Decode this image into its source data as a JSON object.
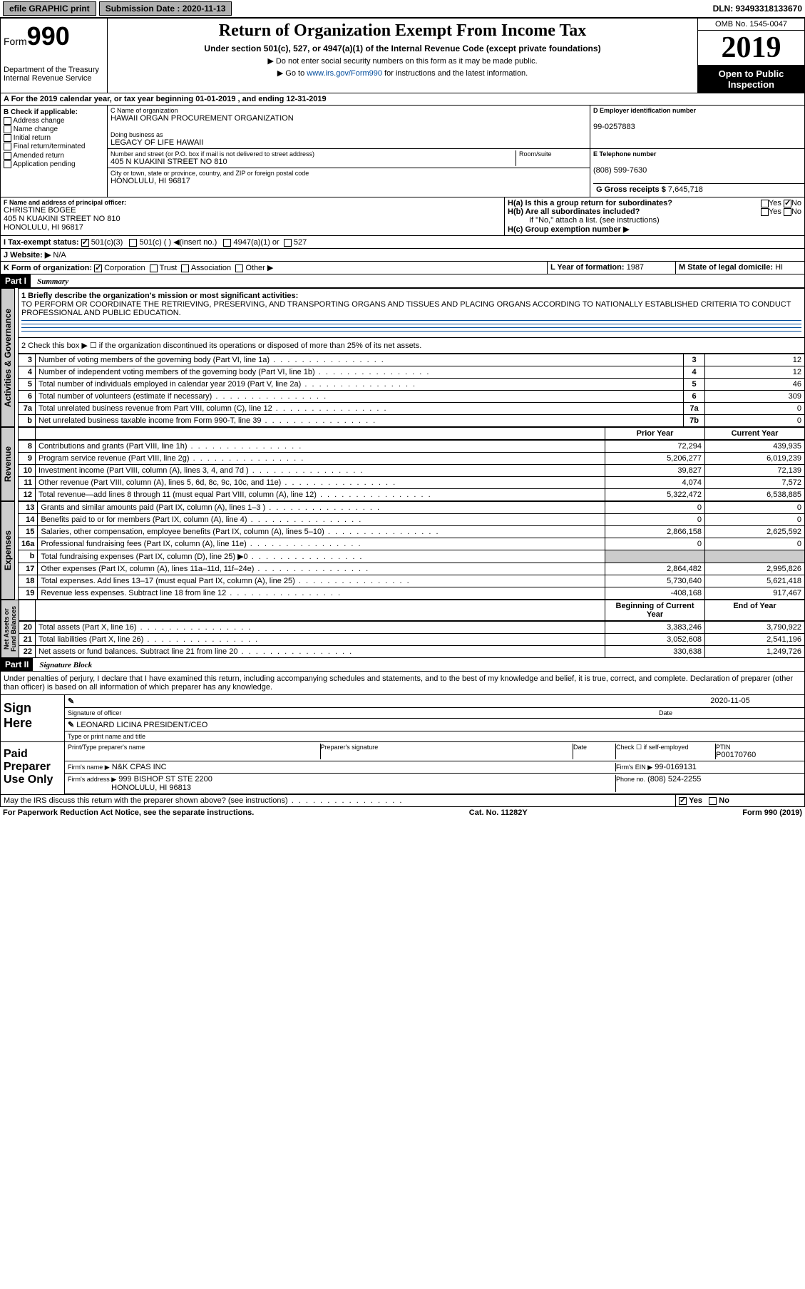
{
  "topbar": {
    "efile": "efile GRAPHIC print",
    "submission_label": "Submission Date : 2020-11-13",
    "dln": "DLN: 93493318133670"
  },
  "header": {
    "form_prefix": "Form",
    "form_number": "990",
    "dept": "Department of the Treasury Internal Revenue Service",
    "title": "Return of Organization Exempt From Income Tax",
    "subtitle": "Under section 501(c), 527, or 4947(a)(1) of the Internal Revenue Code (except private foundations)",
    "note1": "▶ Do not enter social security numbers on this form as it may be made public.",
    "note2_pre": "▶ Go to ",
    "note2_link": "www.irs.gov/Form990",
    "note2_post": " for instructions and the latest information.",
    "omb": "OMB No. 1545-0047",
    "year": "2019",
    "inspect": "Open to Public Inspection"
  },
  "row_a": "A For the 2019 calendar year, or tax year beginning 01-01-2019    , and ending 12-31-2019",
  "box_b": {
    "label": "B Check if applicable:",
    "opts": [
      "Address change",
      "Name change",
      "Initial return",
      "Final return/terminated",
      "Amended return",
      "Application pending"
    ]
  },
  "box_c": {
    "name_label": "C Name of organization",
    "name": "HAWAII ORGAN PROCUREMENT ORGANIZATION",
    "dba_label": "Doing business as",
    "dba": "LEGACY OF LIFE HAWAII",
    "street_label": "Number and street (or P.O. box if mail is not delivered to street address)",
    "street": "405 N KUAKINI STREET NO 810",
    "room_label": "Room/suite",
    "city_label": "City or town, state or province, country, and ZIP or foreign postal code",
    "city": "HONOLULU, HI  96817"
  },
  "box_d": {
    "label": "D Employer identification number",
    "ein": "99-0257883"
  },
  "box_e": {
    "label": "E Telephone number",
    "phone": "(808) 599-7630"
  },
  "box_g": {
    "label": "G Gross receipts $",
    "amount": "7,645,718"
  },
  "box_f": {
    "label": "F  Name and address of principal officer:",
    "name": "CHRISTINE BOGEE",
    "addr1": "405 N KUAKINI STREET NO 810",
    "addr2": "HONOLULU, HI  96817"
  },
  "box_h": {
    "a": "H(a)  Is this a group return for subordinates?",
    "b": "H(b)  Are all subordinates included?",
    "b_note": "If \"No,\" attach a list. (see instructions)",
    "c": "H(c)  Group exemption number ▶",
    "yes": "Yes",
    "no": "No"
  },
  "tax_status": {
    "label": "I  Tax-exempt status:",
    "opt1": "501(c)(3)",
    "opt2": "501(c) (  ) ◀(insert no.)",
    "opt3": "4947(a)(1) or",
    "opt4": "527"
  },
  "website": {
    "label": "J  Website: ▶",
    "val": "N/A"
  },
  "form_org": {
    "label": "K Form of organization:",
    "opts": [
      "Corporation",
      "Trust",
      "Association",
      "Other ▶"
    ]
  },
  "box_l": {
    "label": "L Year of formation:",
    "val": "1987"
  },
  "box_m": {
    "label": "M State of legal domicile:",
    "val": "HI"
  },
  "part1": {
    "hdr": "Part I",
    "title": "Summary"
  },
  "summary": {
    "q1_label": "1  Briefly describe the organization's mission or most significant activities:",
    "q1_text": "TO PERFORM OR COORDINATE THE RETRIEVING, PRESERVING, AND TRANSPORTING ORGANS AND TISSUES AND PLACING ORGANS ACCORDING TO NATIONALLY ESTABLISHED CRITERIA TO CONDUCT PROFESSIONAL AND PUBLIC EDUCATION.",
    "q2": "2   Check this box ▶ ☐  if the organization discontinued its operations or disposed of more than 25% of its net assets.",
    "lines_ag": [
      {
        "n": "3",
        "d": "Number of voting members of the governing body (Part VI, line 1a)",
        "b": "3",
        "v": "12"
      },
      {
        "n": "4",
        "d": "Number of independent voting members of the governing body (Part VI, line 1b)",
        "b": "4",
        "v": "12"
      },
      {
        "n": "5",
        "d": "Total number of individuals employed in calendar year 2019 (Part V, line 2a)",
        "b": "5",
        "v": "46"
      },
      {
        "n": "6",
        "d": "Total number of volunteers (estimate if necessary)",
        "b": "6",
        "v": "309"
      },
      {
        "n": "7a",
        "d": "Total unrelated business revenue from Part VIII, column (C), line 12",
        "b": "7a",
        "v": "0"
      },
      {
        "n": "b",
        "d": "Net unrelated business taxable income from Form 990-T, line 39",
        "b": "7b",
        "v": "0"
      }
    ],
    "col_hdrs": {
      "prior": "Prior Year",
      "current": "Current Year"
    },
    "revenue": [
      {
        "n": "8",
        "d": "Contributions and grants (Part VIII, line 1h)",
        "p": "72,294",
        "c": "439,935"
      },
      {
        "n": "9",
        "d": "Program service revenue (Part VIII, line 2g)",
        "p": "5,206,277",
        "c": "6,019,239"
      },
      {
        "n": "10",
        "d": "Investment income (Part VIII, column (A), lines 3, 4, and 7d )",
        "p": "39,827",
        "c": "72,139"
      },
      {
        "n": "11",
        "d": "Other revenue (Part VIII, column (A), lines 5, 6d, 8c, 9c, 10c, and 11e)",
        "p": "4,074",
        "c": "7,572"
      },
      {
        "n": "12",
        "d": "Total revenue—add lines 8 through 11 (must equal Part VIII, column (A), line 12)",
        "p": "5,322,472",
        "c": "6,538,885"
      }
    ],
    "expenses": [
      {
        "n": "13",
        "d": "Grants and similar amounts paid (Part IX, column (A), lines 1–3 )",
        "p": "0",
        "c": "0"
      },
      {
        "n": "14",
        "d": "Benefits paid to or for members (Part IX, column (A), line 4)",
        "p": "0",
        "c": "0"
      },
      {
        "n": "15",
        "d": "Salaries, other compensation, employee benefits (Part IX, column (A), lines 5–10)",
        "p": "2,866,158",
        "c": "2,625,592"
      },
      {
        "n": "16a",
        "d": "Professional fundraising fees (Part IX, column (A), line 11e)",
        "p": "0",
        "c": "0"
      },
      {
        "n": "b",
        "d": "Total fundraising expenses (Part IX, column (D), line 25) ▶0",
        "p": "",
        "c": "",
        "shade": true
      },
      {
        "n": "17",
        "d": "Other expenses (Part IX, column (A), lines 11a–11d, 11f–24e)",
        "p": "2,864,482",
        "c": "2,995,826"
      },
      {
        "n": "18",
        "d": "Total expenses. Add lines 13–17 (must equal Part IX, column (A), line 25)",
        "p": "5,730,640",
        "c": "5,621,418"
      },
      {
        "n": "19",
        "d": "Revenue less expenses. Subtract line 18 from line 12",
        "p": "-408,168",
        "c": "917,467"
      }
    ],
    "net_hdrs": {
      "begin": "Beginning of Current Year",
      "end": "End of Year"
    },
    "net": [
      {
        "n": "20",
        "d": "Total assets (Part X, line 16)",
        "p": "3,383,246",
        "c": "3,790,922"
      },
      {
        "n": "21",
        "d": "Total liabilities (Part X, line 26)",
        "p": "3,052,608",
        "c": "2,541,196"
      },
      {
        "n": "22",
        "d": "Net assets or fund balances. Subtract line 21 from line 20",
        "p": "330,638",
        "c": "1,249,726"
      }
    ]
  },
  "vtabs": {
    "ag": "Activities & Governance",
    "rev": "Revenue",
    "exp": "Expenses",
    "net": "Net Assets or Fund Balances"
  },
  "part2": {
    "hdr": "Part II",
    "title": "Signature Block"
  },
  "sig": {
    "penalty": "Under penalties of perjury, I declare that I have examined this return, including accompanying schedules and statements, and to the best of my knowledge and belief, it is true, correct, and complete. Declaration of preparer (other than officer) is based on all information of which preparer has any knowledge.",
    "sign_here": "Sign Here",
    "sig_officer": "Signature of officer",
    "date_label": "Date",
    "date": "2020-11-05",
    "name_title": "LEONARD LICINA  PRESIDENT/CEO",
    "name_title_label": "Type or print name and title",
    "paid": "Paid Preparer Use Only",
    "prep_name_label": "Print/Type preparer's name",
    "prep_sig_label": "Preparer's signature",
    "check_self": "Check ☐  if self-employed",
    "ptin_label": "PTIN",
    "ptin": "P00170760",
    "firm_name_label": "Firm's name    ▶",
    "firm_name": "N&K CPAS INC",
    "firm_ein_label": "Firm's EIN ▶",
    "firm_ein": "99-0169131",
    "firm_addr_label": "Firm's address ▶",
    "firm_addr1": "999 BISHOP ST STE 2200",
    "firm_addr2": "HONOLULU, HI  96813",
    "phone_label": "Phone no.",
    "phone": "(808) 524-2255",
    "discuss": "May the IRS discuss this return with the preparer shown above? (see instructions)",
    "yes": "Yes",
    "no": "No"
  },
  "footer": {
    "left": "For Paperwork Reduction Act Notice, see the separate instructions.",
    "mid": "Cat. No. 11282Y",
    "right": "Form 990 (2019)"
  },
  "colors": {
    "link": "#004b9b",
    "shade": "#cccccc"
  }
}
